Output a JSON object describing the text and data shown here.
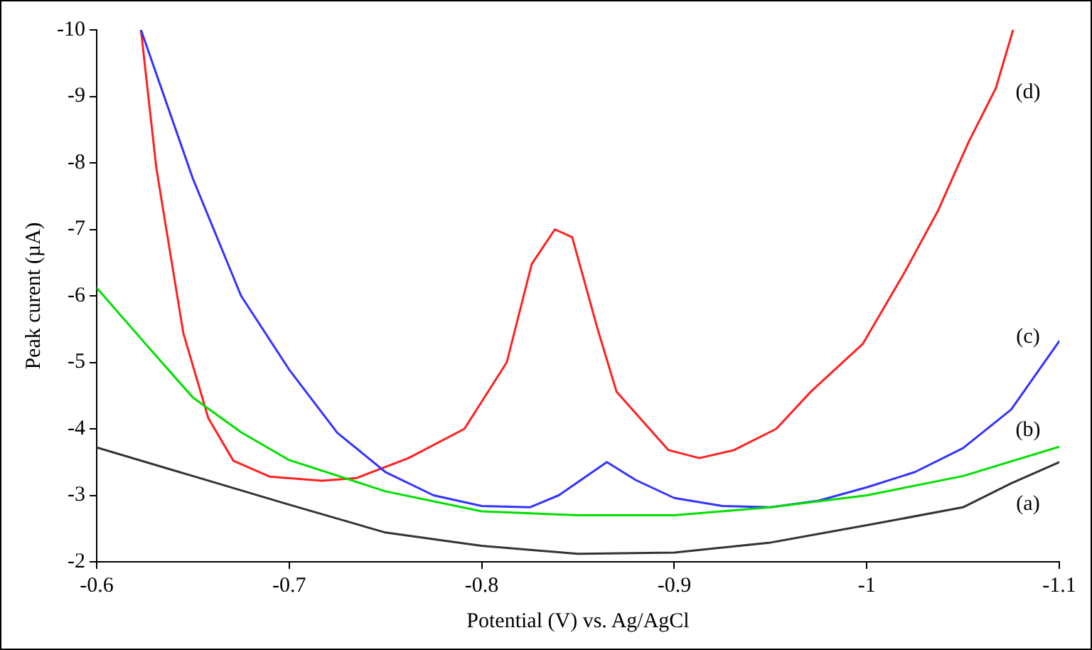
{
  "chart_data": {
    "type": "line",
    "xlabel": "Potential (V) vs. Ag/AgCl",
    "ylabel": "Peak curent (µA)",
    "xlim": [
      -0.6,
      -1.1
    ],
    "xticks": [
      -0.6,
      -0.7,
      -0.8,
      -0.9,
      -1,
      -1.1
    ],
    "ylim": [
      -2,
      -10
    ],
    "yticks": [
      -2,
      -3,
      -4,
      -5,
      -6,
      -7,
      -8,
      -9,
      -10
    ],
    "grid": false,
    "legend": false,
    "marker": "none",
    "line_style": "solid",
    "series": [
      {
        "name": "(a)",
        "color": "#333333",
        "x": [
          -0.6,
          -0.65,
          -0.7,
          -0.75,
          -0.8,
          -0.85,
          -0.9,
          -0.95,
          -1.0,
          -1.05,
          -1.075,
          -1.1
        ],
        "values": [
          -3.72,
          -3.29,
          -2.86,
          -2.44,
          -2.24,
          -2.12,
          -2.14,
          -2.29,
          -2.55,
          -2.82,
          -3.18,
          -3.5
        ]
      },
      {
        "name": "(b)",
        "color": "#00e000",
        "x": [
          -0.6,
          -0.625,
          -0.65,
          -0.675,
          -0.7,
          -0.75,
          -0.8,
          -0.85,
          -0.9,
          -0.95,
          -1.0,
          -1.05,
          -1.1
        ],
        "values": [
          -6.12,
          -5.29,
          -4.47,
          -3.95,
          -3.53,
          -3.06,
          -2.76,
          -2.7,
          -2.7,
          -2.82,
          -3.0,
          -3.29,
          -3.73
        ]
      },
      {
        "name": "(c)",
        "color": "#3333ff",
        "x": [
          -0.623,
          -0.65,
          -0.675,
          -0.7,
          -0.725,
          -0.75,
          -0.775,
          -0.8,
          -0.825,
          -0.84,
          -0.865,
          -0.88,
          -0.9,
          -0.925,
          -0.95,
          -0.975,
          -1.0,
          -1.025,
          -1.05,
          -1.075,
          -1.1
        ],
        "values": [
          -10,
          -7.76,
          -6.0,
          -4.89,
          -3.94,
          -3.35,
          -3.0,
          -2.84,
          -2.82,
          -3.0,
          -3.5,
          -3.23,
          -2.96,
          -2.84,
          -2.82,
          -2.92,
          -3.12,
          -3.35,
          -3.71,
          -4.29,
          -5.32
        ]
      },
      {
        "name": "(d)",
        "color": "#ff2020",
        "x": [
          -0.623,
          -0.631,
          -0.645,
          -0.658,
          -0.671,
          -0.69,
          -0.717,
          -0.735,
          -0.762,
          -0.791,
          -0.813,
          -0.826,
          -0.838,
          -0.847,
          -0.86,
          -0.87,
          -0.897,
          -0.913,
          -0.931,
          -0.953,
          -0.971,
          -0.998,
          -1.019,
          -1.037,
          -1.053,
          -1.067,
          -1.076
        ],
        "values": [
          -10,
          -7.92,
          -5.44,
          -4.16,
          -3.52,
          -3.28,
          -3.22,
          -3.26,
          -3.56,
          -4.0,
          -5.0,
          -6.48,
          -7.0,
          -6.88,
          -5.52,
          -4.56,
          -3.68,
          -3.56,
          -3.68,
          -4.0,
          -4.56,
          -5.28,
          -6.32,
          -7.28,
          -8.32,
          -9.12,
          -10
        ]
      }
    ]
  }
}
